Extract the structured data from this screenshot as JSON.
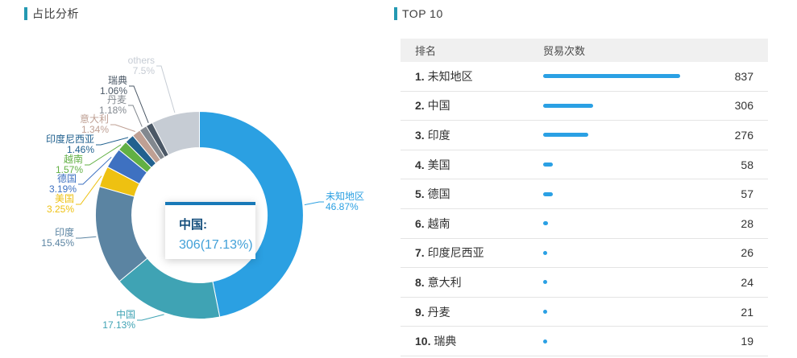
{
  "left_panel": {
    "title": "占比分析",
    "tooltip": {
      "title": "中国:",
      "value": "306(17.13%)"
    }
  },
  "right_panel": {
    "title": "TOP 10"
  },
  "chart_data": [
    {
      "type": "pie",
      "title": "占比分析",
      "donut": true,
      "legend_position": "none",
      "slices": [
        {
          "name": "未知地区",
          "percent": 46.87,
          "percent_label": "46.87%",
          "color": "#2ba0e2"
        },
        {
          "name": "中国",
          "percent": 17.13,
          "percent_label": "17.13%",
          "color": "#3fa3b4"
        },
        {
          "name": "印度",
          "percent": 15.45,
          "percent_label": "15.45%",
          "color": "#5b84a2"
        },
        {
          "name": "美国",
          "percent": 3.25,
          "percent_label": "3.25%",
          "color": "#eec111"
        },
        {
          "name": "德国",
          "percent": 3.19,
          "percent_label": "3.19%",
          "color": "#3e71c1"
        },
        {
          "name": "越南",
          "percent": 1.57,
          "percent_label": "1.57%",
          "color": "#62b044"
        },
        {
          "name": "印度尼西亚",
          "percent": 1.46,
          "percent_label": "1.46%",
          "color": "#21618f"
        },
        {
          "name": "意大利",
          "percent": 1.34,
          "percent_label": "1.34%",
          "color": "#bfa094"
        },
        {
          "name": "丹麦",
          "percent": 1.18,
          "percent_label": "1.18%",
          "color": "#82888f"
        },
        {
          "name": "瑞典",
          "percent": 1.06,
          "percent_label": "1.06%",
          "color": "#4b5866"
        },
        {
          "name": "others",
          "percent": 7.5,
          "percent_label": "7.5%",
          "color": "#c6ccd4"
        }
      ]
    },
    {
      "type": "table",
      "title": "TOP 10",
      "columns": [
        "排名",
        "贸易次数"
      ],
      "bar_max_value": 837,
      "rows": [
        {
          "rank": "1.",
          "name": "未知地区",
          "value": 837
        },
        {
          "rank": "2.",
          "name": "中国",
          "value": 306
        },
        {
          "rank": "3.",
          "name": "印度",
          "value": 276
        },
        {
          "rank": "4.",
          "name": "美国",
          "value": 58
        },
        {
          "rank": "5.",
          "name": "德国",
          "value": 57
        },
        {
          "rank": "6.",
          "name": "越南",
          "value": 28
        },
        {
          "rank": "7.",
          "name": "印度尼西亚",
          "value": 26
        },
        {
          "rank": "8.",
          "name": "意大利",
          "value": 24
        },
        {
          "rank": "9.",
          "name": "丹麦",
          "value": 21
        },
        {
          "rank": "10.",
          "name": "瑞典",
          "value": 19
        }
      ]
    }
  ],
  "colors": {
    "accent_teal": "#2499b2",
    "bar_blue": "#2aa0e4",
    "tooltip_border": "#1879b8",
    "tooltip_title": "#144e7c",
    "tooltip_value": "#41a0d8"
  }
}
